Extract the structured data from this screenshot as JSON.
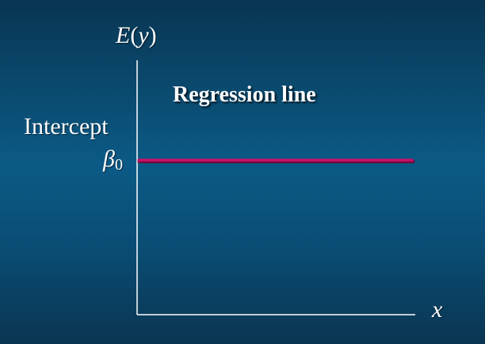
{
  "diagram": {
    "y_axis_label": {
      "prefix": "E",
      "open_paren": "(",
      "variable": "y",
      "close_paren": ")"
    },
    "x_axis_label": "x",
    "line_label": "Regression line",
    "intercept_label": "Intercept",
    "intercept_symbol": {
      "base": "β",
      "subscript": "0"
    },
    "colors": {
      "background_top": "#083553",
      "background_mid": "#0b5a86",
      "axis": "#ffffff",
      "regression_line": "#c8106a",
      "text": "#ffffff"
    }
  }
}
